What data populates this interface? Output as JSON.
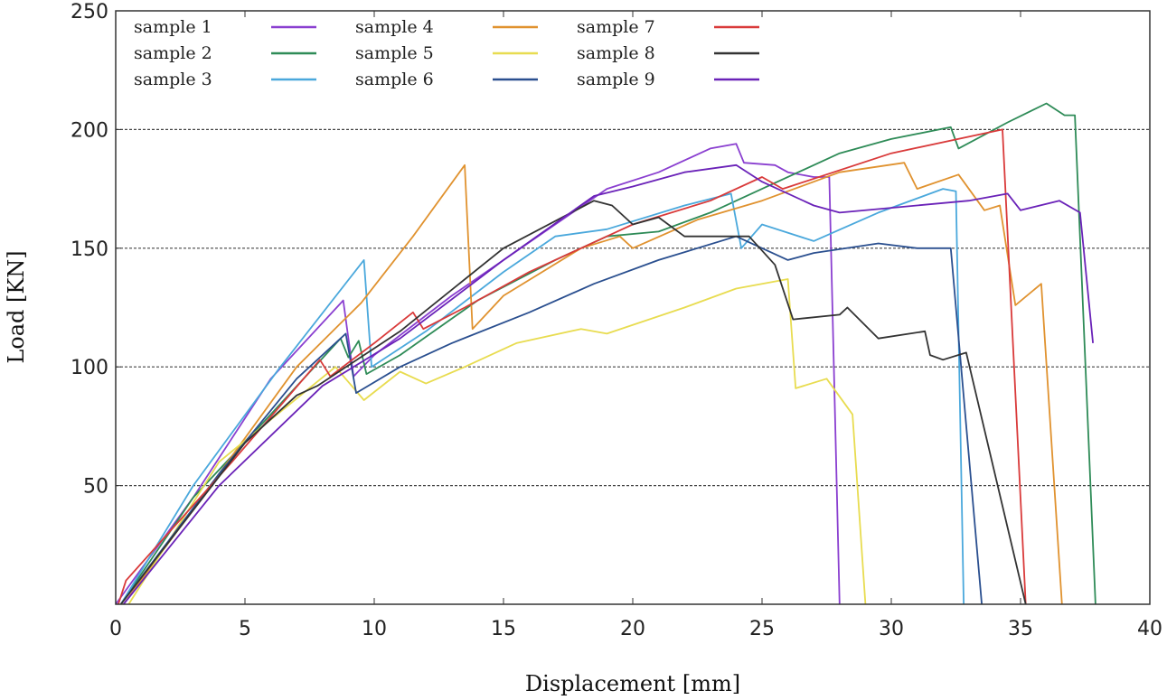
{
  "chart_data": {
    "type": "line",
    "title": "",
    "xlabel": "Displacement [mm]",
    "ylabel": "Load [KN]",
    "xlim": [
      0,
      40
    ],
    "ylim": [
      0,
      250
    ],
    "xticks": [
      0,
      5,
      10,
      15,
      20,
      25,
      30,
      35,
      40
    ],
    "yticks": [
      50,
      100,
      150,
      200,
      250
    ],
    "grid": "horizontal dashed",
    "legend_position": "top-left",
    "series": [
      {
        "name": "sample 1",
        "color": "#8a3fd0",
        "x": [
          0,
          3,
          6,
          8.8,
          9.2,
          10,
          13,
          17,
          19,
          21,
          23,
          24,
          24.3,
          25.5,
          26,
          27,
          27.6,
          28
        ],
        "y": [
          0,
          45,
          95,
          128,
          96,
          105,
          130,
          160,
          175,
          182,
          192,
          194,
          186,
          185,
          182,
          180,
          180,
          0
        ]
      },
      {
        "name": "sample 2",
        "color": "#2e8b57",
        "x": [
          0.2,
          3,
          6,
          8.7,
          9,
          9.4,
          9.7,
          11,
          14,
          17,
          19,
          21,
          23,
          25,
          28,
          30,
          32.3,
          32.6,
          34.5,
          36,
          36.7,
          37.1,
          37.9
        ],
        "y": [
          0,
          45,
          80,
          112,
          104,
          111,
          97,
          105,
          128,
          145,
          155,
          157,
          165,
          175,
          190,
          196,
          201,
          192,
          203,
          211,
          206,
          206,
          0
        ]
      },
      {
        "name": "sample 3",
        "color": "#4aa8dc",
        "x": [
          0.2,
          3,
          6.3,
          9.6,
          9.9,
          12,
          15,
          17,
          19,
          22,
          23.8,
          24.2,
          25,
          27,
          29.5,
          32,
          32.5,
          32.8
        ],
        "y": [
          0,
          50,
          99,
          145,
          100,
          115,
          140,
          155,
          158,
          168,
          173,
          150,
          160,
          153,
          165,
          175,
          174,
          0
        ]
      },
      {
        "name": "sample 4",
        "color": "#e0922f",
        "x": [
          0.3,
          4,
          7,
          9.5,
          11.5,
          13.5,
          13.8,
          15,
          18,
          19.5,
          20,
          22.5,
          25,
          28,
          30.5,
          31,
          32.6,
          33.6,
          34.2,
          34.8,
          35.8,
          36.6
        ],
        "y": [
          0,
          55,
          100,
          127,
          155,
          185,
          116,
          130,
          150,
          155,
          150,
          162,
          170,
          182,
          186,
          175,
          181,
          166,
          168,
          126,
          135,
          0
        ]
      },
      {
        "name": "sample 5",
        "color": "#e8dc50",
        "x": [
          0.5,
          4,
          8.5,
          9.6,
          11,
          12,
          13.5,
          15.5,
          18,
          19,
          22,
          24,
          26,
          26.3,
          27.5,
          28.5,
          29
        ],
        "y": [
          0,
          60,
          100,
          86,
          98,
          93,
          100,
          110,
          116,
          114,
          125,
          133,
          137,
          91,
          95,
          80,
          0
        ]
      },
      {
        "name": "sample 6",
        "color": "#2a4f8f",
        "x": [
          0.2,
          4,
          7,
          8.9,
          9.3,
          11,
          13,
          16,
          18.5,
          21,
          24,
          26,
          27,
          29.5,
          31,
          32.3,
          33.5
        ],
        "y": [
          0,
          55,
          95,
          114,
          89,
          100,
          110,
          123,
          135,
          145,
          155,
          145,
          148,
          152,
          150,
          150,
          0
        ]
      },
      {
        "name": "sample 7",
        "color": "#d93a3a",
        "x": [
          0.1,
          0.4,
          4.5,
          7.9,
          8.3,
          10,
          11.5,
          11.9,
          13.5,
          16,
          20,
          23,
          25,
          25.8,
          30,
          34.3,
          35.2
        ],
        "y": [
          0,
          10,
          60,
          103,
          96,
          110,
          123,
          116,
          125,
          140,
          160,
          170,
          180,
          175,
          190,
          200,
          0
        ]
      },
      {
        "name": "sample 8",
        "color": "#333333",
        "x": [
          0.2,
          5,
          7,
          7.8,
          11,
          15,
          18.5,
          19.2,
          20,
          21,
          22,
          24.5,
          25.5,
          26.2,
          28,
          28.3,
          29.5,
          31.3,
          31.5,
          32,
          32.9,
          35.2
        ],
        "y": [
          0,
          68,
          88,
          92,
          115,
          150,
          170,
          168,
          160,
          163,
          155,
          155,
          143,
          120,
          122,
          125,
          112,
          115,
          105,
          103,
          106,
          0
        ]
      },
      {
        "name": "sample 9",
        "color": "#6a22b8",
        "x": [
          0.3,
          4,
          8,
          11,
          15,
          18.5,
          20,
          22,
          24,
          25,
          27,
          28,
          30,
          33,
          34.5,
          35,
          36.5,
          37.3,
          37.8
        ],
        "y": [
          0,
          50,
          92,
          112,
          145,
          172,
          176,
          182,
          185,
          178,
          168,
          165,
          167,
          170,
          173,
          166,
          170,
          165,
          110
        ]
      }
    ]
  }
}
